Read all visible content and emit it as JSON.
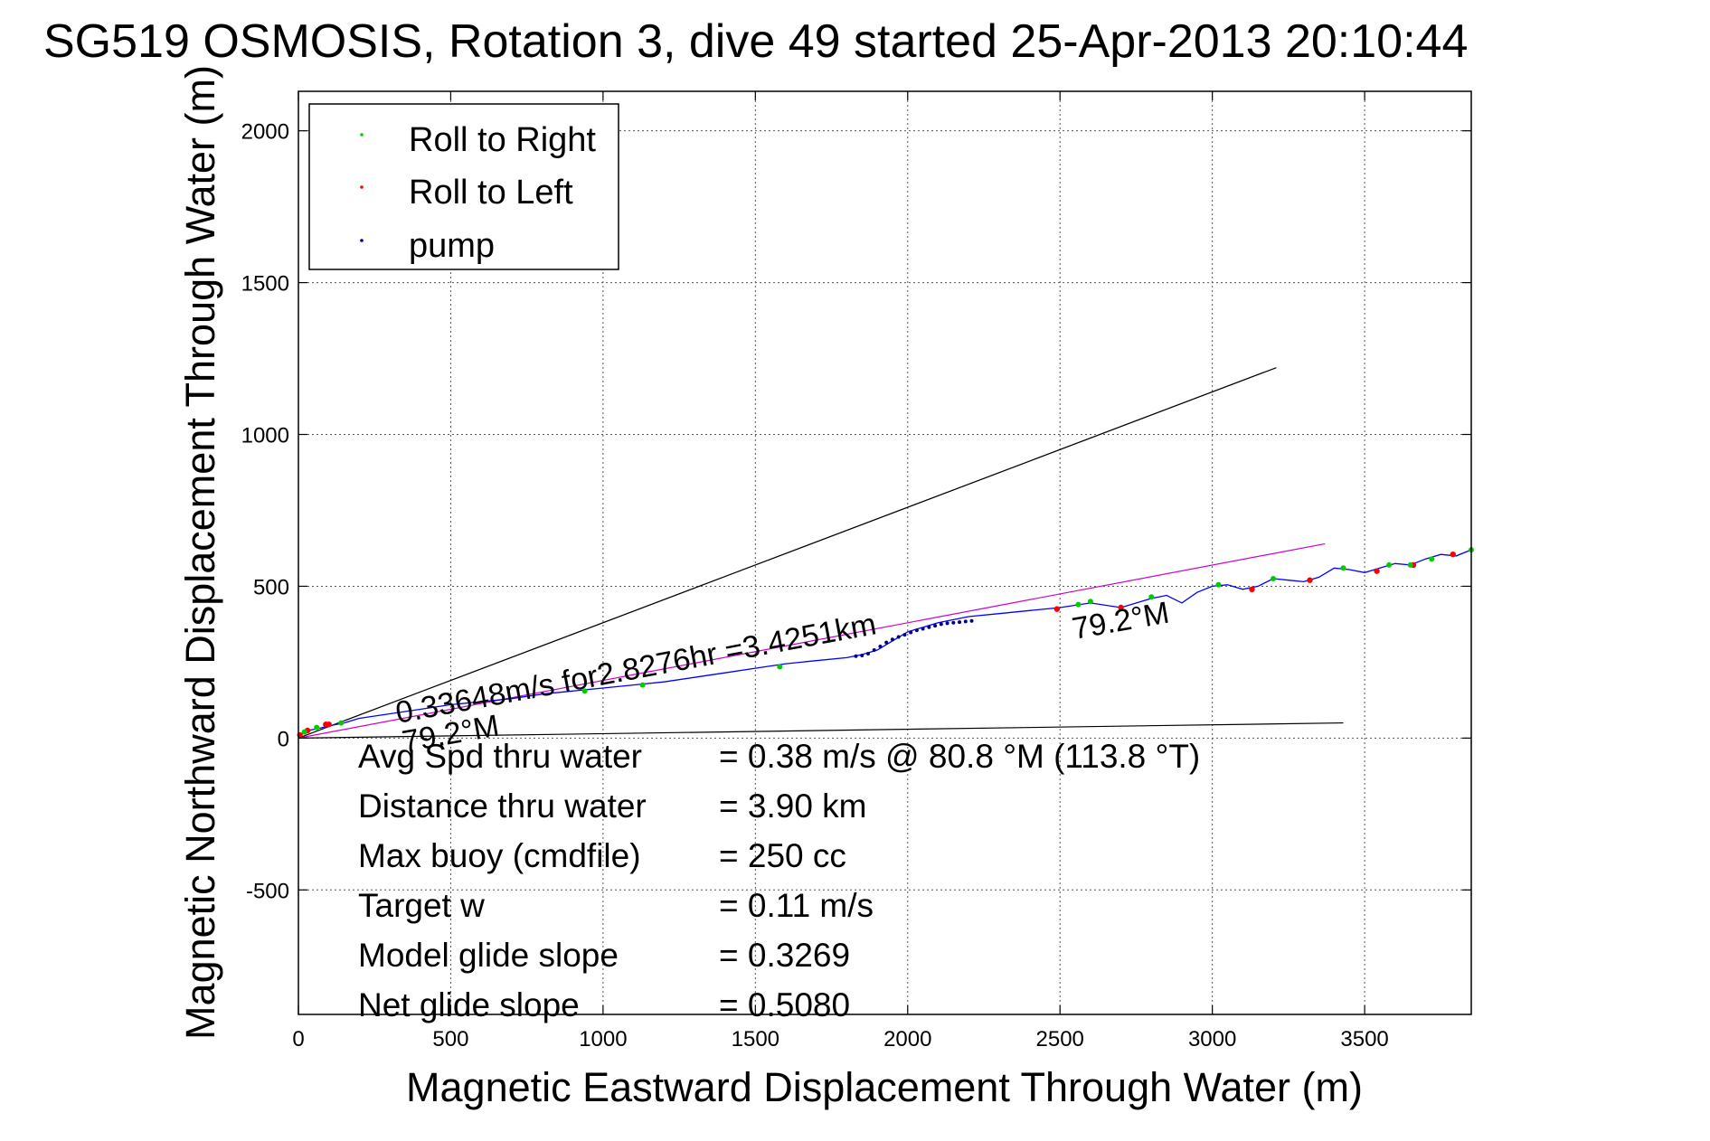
{
  "chart_data": {
    "type": "line",
    "title": "SG519 OSMOSIS, Rotation 3, dive 49 started 25-Apr-2013 20:10:44",
    "xlabel": "Magnetic Eastward Displacement Through Water (m)",
    "ylabel": "Magnetic Northward Displacement Through Water (m)",
    "xlim": [
      0,
      3850
    ],
    "ylim": [
      -910,
      2130
    ],
    "xticks": [
      0,
      500,
      1000,
      1500,
      2000,
      2500,
      3000,
      3500
    ],
    "yticks": [
      -500,
      0,
      500,
      1000,
      1500,
      2000
    ],
    "grid": true,
    "legend": {
      "placement": "top-left",
      "entries": [
        {
          "label": "Roll to Right",
          "color": "#00cc00"
        },
        {
          "label": "Roll to Left",
          "color": "#ff0000"
        },
        {
          "label": "pump",
          "color": "#00008b"
        }
      ]
    },
    "colors": {
      "track": "#0000ff",
      "roll_right": "#00cc00",
      "roll_left": "#ff0000",
      "pump": "#00008b",
      "heading_line": "#cc00cc",
      "envelope": "#000000"
    },
    "track": {
      "name": "",
      "x": [
        0,
        15,
        30,
        60,
        100,
        150,
        200,
        300,
        400,
        500,
        600,
        700,
        800,
        900,
        1000,
        1100,
        1200,
        1300,
        1400,
        1500,
        1600,
        1700,
        1800,
        1850,
        1900,
        1950,
        2000,
        2100,
        2200,
        2300,
        2400,
        2500,
        2600,
        2700,
        2800,
        2850,
        2900,
        2950,
        3000,
        3050,
        3100,
        3150,
        3200,
        3250,
        3300,
        3350,
        3400,
        3450,
        3500,
        3550,
        3600,
        3650,
        3700,
        3750,
        3800,
        3850
      ],
      "y": [
        0,
        20,
        25,
        30,
        40,
        50,
        65,
        80,
        95,
        110,
        120,
        130,
        145,
        155,
        165,
        175,
        185,
        200,
        215,
        230,
        245,
        255,
        265,
        275,
        290,
        320,
        350,
        380,
        400,
        410,
        420,
        430,
        445,
        430,
        460,
        470,
        445,
        480,
        500,
        505,
        490,
        500,
        525,
        520,
        515,
        530,
        560,
        555,
        545,
        560,
        575,
        570,
        590,
        605,
        600,
        620
      ]
    },
    "roll_right_points": {
      "x": [
        20,
        60,
        140,
        940,
        1130,
        1580,
        2560,
        2600,
        2800,
        3020,
        3200,
        3430,
        3580,
        3650,
        3720,
        3850
      ],
      "y": [
        20,
        35,
        50,
        155,
        175,
        235,
        440,
        450,
        465,
        505,
        525,
        560,
        570,
        570,
        590,
        620
      ]
    },
    "roll_left_points": {
      "x": [
        5,
        30,
        90,
        100,
        2490,
        2700,
        3130,
        3320,
        3540,
        3660,
        3790
      ],
      "y": [
        10,
        25,
        45,
        45,
        425,
        430,
        490,
        520,
        550,
        570,
        605
      ]
    },
    "pump_points": {
      "x": [
        1830,
        1850,
        1870,
        1890,
        1910,
        1930,
        1950,
        1970,
        1990,
        2010,
        2030,
        2050,
        2070,
        2090,
        2110,
        2130,
        2150,
        2170,
        2190,
        2210
      ],
      "y": [
        270,
        272,
        278,
        290,
        302,
        315,
        325,
        333,
        340,
        348,
        355,
        360,
        365,
        370,
        375,
        378,
        380,
        382,
        384,
        386
      ]
    },
    "heading_line": {
      "x": [
        0,
        3370
      ],
      "y": [
        0,
        640
      ]
    },
    "envelope_upper": {
      "x": [
        0,
        3210
      ],
      "y": [
        0,
        1220
      ]
    },
    "envelope_lower": {
      "x": [
        0,
        3430
      ],
      "y": [
        0,
        50
      ]
    },
    "annotations": {
      "speed_line": "0.33648m/s for2.8276hr =3.4251km",
      "heading_near": "79.2°M",
      "heading_far": "79.2°M"
    },
    "stats": [
      {
        "label": "Avg Spd thru water",
        "value": "=  0.38 m/s @  80.8 °M (113.8 °T)"
      },
      {
        "label": "Distance thru water",
        "value": "=  3.90 km"
      },
      {
        "label": "Max buoy (cmdfile)",
        "value": "= 250 cc"
      },
      {
        "label": "Target w",
        "value": "= 0.11 m/s"
      },
      {
        "label": "Model glide slope",
        "value": "= 0.3269"
      },
      {
        "label": "Net glide slope",
        "value": "= 0.5080"
      }
    ]
  }
}
